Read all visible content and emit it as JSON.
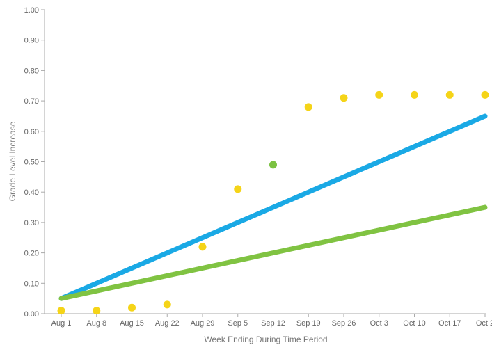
{
  "chart_data": {
    "type": "scatter",
    "xlabel": "Week Ending During Time Period",
    "ylabel": "Grade Level Increase",
    "categories": [
      "Aug 1",
      "Aug 8",
      "Aug 15",
      "Aug 22",
      "Aug 29",
      "Sep 5",
      "Sep 12",
      "Sep 19",
      "Sep 26",
      "Oct 3",
      "Oct 10",
      "Oct 17",
      "Oct 2"
    ],
    "ylim": [
      0,
      1
    ],
    "y_ticks": [
      "0.00",
      "0.10",
      "0.20",
      "0.30",
      "0.40",
      "0.50",
      "0.60",
      "0.70",
      "0.80",
      "0.90",
      "1.00"
    ],
    "grid": false,
    "legend": "none",
    "points": [
      {
        "category": "Aug 1",
        "value": 0.01,
        "color": "#f5d418"
      },
      {
        "category": "Aug 8",
        "value": 0.01,
        "color": "#f5d418"
      },
      {
        "category": "Aug 15",
        "value": 0.02,
        "color": "#f5d418"
      },
      {
        "category": "Aug 22",
        "value": 0.03,
        "color": "#f5d418"
      },
      {
        "category": "Aug 29",
        "value": 0.22,
        "color": "#f5d418"
      },
      {
        "category": "Sep 5",
        "value": 0.41,
        "color": "#f5d418"
      },
      {
        "category": "Sep 12",
        "value": 0.49,
        "color": "#7cc242"
      },
      {
        "category": "Sep 19",
        "value": 0.68,
        "color": "#f5d418"
      },
      {
        "category": "Sep 26",
        "value": 0.71,
        "color": "#f5d418"
      },
      {
        "category": "Oct 3",
        "value": 0.72,
        "color": "#f5d418"
      },
      {
        "category": "Oct 10",
        "value": 0.72,
        "color": "#f5d418"
      },
      {
        "category": "Oct 17",
        "value": 0.72,
        "color": "#f5d418"
      },
      {
        "category": "Oct 2",
        "value": 0.72,
        "color": "#f5d418"
      }
    ],
    "lines": [
      {
        "color": "#1aa9e5",
        "from": {
          "category": "Aug 1",
          "value": 0.05
        },
        "to": {
          "category": "Oct 2",
          "value": 0.65
        }
      },
      {
        "color": "#80c342",
        "from": {
          "category": "Aug 1",
          "value": 0.05
        },
        "to": {
          "category": "Oct 2",
          "value": 0.35
        }
      }
    ]
  }
}
